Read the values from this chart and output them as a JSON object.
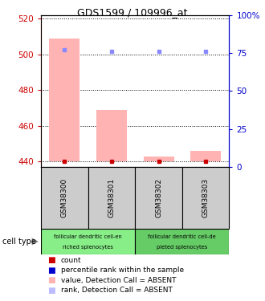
{
  "title": "GDS1599 / 109996_at",
  "samples": [
    "GSM38300",
    "GSM38301",
    "GSM38302",
    "GSM38303"
  ],
  "ylim_left": [
    437,
    522
  ],
  "yticks_left": [
    440,
    460,
    480,
    500,
    520
  ],
  "yticks_right": [
    0,
    25,
    50,
    75,
    100
  ],
  "bar_values": [
    509,
    469,
    443,
    446
  ],
  "bar_base": 440,
  "rank_values": [
    77,
    76,
    76,
    76
  ],
  "bar_color": "#ffb3b3",
  "rank_dot_color": "#8888ff",
  "count_dot_color": "#cc0000",
  "left_axis_color": "#cc0000",
  "right_axis_color": "#0000cc",
  "group1_color": "#88ee88",
  "group2_color": "#66cc66",
  "gray_box_color": "#cccccc",
  "legend_items": [
    {
      "color": "#cc0000",
      "label": "count"
    },
    {
      "color": "#0000cc",
      "label": "percentile rank within the sample"
    },
    {
      "color": "#ffb3b3",
      "label": "value, Detection Call = ABSENT"
    },
    {
      "color": "#bbbbff",
      "label": "rank, Detection Call = ABSENT"
    }
  ]
}
